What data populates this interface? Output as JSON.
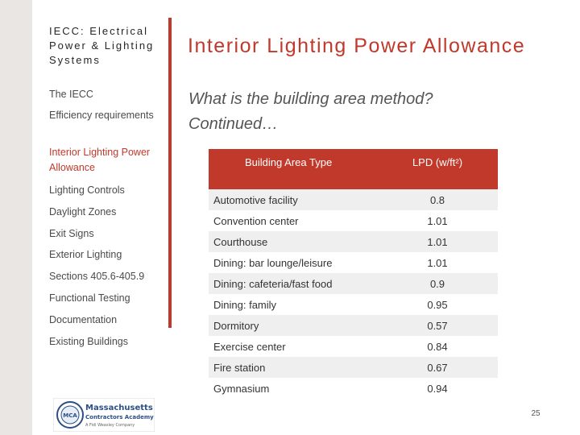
{
  "sidebar": {
    "title": "IECC: Electrical Power & Lighting Systems",
    "items": [
      {
        "label": "The IECC",
        "active": false
      },
      {
        "label": "Efficiency requirements",
        "active": false
      },
      {
        "label": "Interior Lighting Power Allowance",
        "active": true
      },
      {
        "label": "Lighting Controls",
        "active": false
      },
      {
        "label": "Daylight Zones",
        "active": false
      },
      {
        "label": "Exit Signs",
        "active": false
      },
      {
        "label": "Exterior Lighting",
        "active": false
      },
      {
        "label": "Sections 405.6-405.9",
        "active": false
      },
      {
        "label": "Functional Testing",
        "active": false
      },
      {
        "label": "Documentation",
        "active": false
      },
      {
        "label": "Existing Buildings",
        "active": false
      }
    ]
  },
  "main": {
    "title": "Interior Lighting Power Allowance",
    "subtitle_line1": "What is the building area method?",
    "subtitle_line2": "Continued…"
  },
  "table": {
    "headers": [
      "Building Area Type",
      "LPD (w/ft²)"
    ],
    "rows": [
      [
        "Automotive facility",
        "0.8"
      ],
      [
        "Convention center",
        "1.01"
      ],
      [
        "Courthouse",
        "1.01"
      ],
      [
        "Dining:  bar lounge/leisure",
        "1.01"
      ],
      [
        "Dining:  cafeteria/fast food",
        "0.9"
      ],
      [
        "Dining:  family",
        "0.95"
      ],
      [
        "Dormitory",
        "0.57"
      ],
      [
        "Exercise center",
        "0.84"
      ],
      [
        "Fire station",
        "0.67"
      ],
      [
        "Gymnasium",
        "0.94"
      ]
    ]
  },
  "logo": {
    "line1": "Massachusetts",
    "line2": "Contractors Academy",
    "line3": "A Fidi Weasley Company",
    "seal_text": "MCA"
  },
  "page_number": "25",
  "colors": {
    "accent": "#c0392b",
    "stripe": "#eae6e3"
  }
}
